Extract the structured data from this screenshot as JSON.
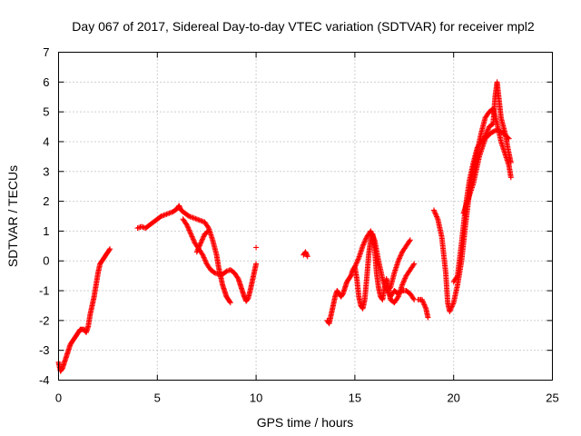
{
  "chart_data": {
    "type": "scatter",
    "title": "Day 067 of 2017, Sidereal Day-to-day VTEC variation (SDTVAR) for receiver mpl2",
    "xlabel": "GPS time / hours",
    "ylabel": "SDTVAR / TECUs",
    "xlim": [
      0,
      25
    ],
    "ylim": [
      -4,
      7
    ],
    "x_ticks": [
      0,
      5,
      10,
      15,
      20,
      25
    ],
    "y_ticks": [
      -4,
      -3,
      -2,
      -1,
      0,
      1,
      2,
      3,
      4,
      5,
      6,
      7
    ],
    "grid": true,
    "marker": "+",
    "colors": {
      "series": "#ff0000",
      "grid": "#a0a0a0",
      "axes": "#000000"
    },
    "series": [
      {
        "name": "SDTVAR",
        "segments": [
          [
            [
              0.0,
              -3.4
            ],
            [
              0.1,
              -3.7
            ],
            [
              0.2,
              -3.6
            ],
            [
              0.3,
              -3.4
            ],
            [
              0.4,
              -3.2
            ],
            [
              0.5,
              -3.0
            ],
            [
              0.6,
              -2.8
            ],
            [
              0.7,
              -2.7
            ],
            [
              0.8,
              -2.6
            ],
            [
              0.9,
              -2.5
            ],
            [
              1.0,
              -2.4
            ],
            [
              1.1,
              -2.3
            ],
            [
              1.2,
              -2.3
            ],
            [
              1.3,
              -2.3
            ],
            [
              1.4,
              -2.4
            ],
            [
              1.5,
              -2.2
            ],
            [
              1.6,
              -1.8
            ],
            [
              1.7,
              -1.5
            ],
            [
              1.8,
              -1.2
            ],
            [
              1.9,
              -0.8
            ],
            [
              2.0,
              -0.4
            ],
            [
              2.1,
              -0.1
            ],
            [
              2.2,
              0.0
            ],
            [
              2.3,
              0.1
            ],
            [
              2.4,
              0.2
            ],
            [
              2.5,
              0.3
            ],
            [
              2.6,
              0.4
            ]
          ],
          [
            [
              4.0,
              1.1
            ],
            [
              4.2,
              1.15
            ],
            [
              4.4,
              1.1
            ],
            [
              4.6,
              1.2
            ],
            [
              4.8,
              1.3
            ],
            [
              5.0,
              1.4
            ],
            [
              5.2,
              1.5
            ],
            [
              5.4,
              1.55
            ],
            [
              5.6,
              1.6
            ],
            [
              5.8,
              1.65
            ],
            [
              6.0,
              1.75
            ],
            [
              6.1,
              1.85
            ],
            [
              6.2,
              1.7
            ],
            [
              6.4,
              1.6
            ],
            [
              6.6,
              1.5
            ],
            [
              6.8,
              1.45
            ],
            [
              7.0,
              1.4
            ],
            [
              7.2,
              1.35
            ],
            [
              7.4,
              1.3
            ],
            [
              7.6,
              1.1
            ],
            [
              7.8,
              0.7
            ],
            [
              8.0,
              0.2
            ],
            [
              8.1,
              -0.2
            ],
            [
              8.2,
              -0.5
            ],
            [
              8.3,
              -0.8
            ],
            [
              8.4,
              -1.0
            ],
            [
              8.5,
              -1.2
            ],
            [
              8.6,
              -1.3
            ],
            [
              8.7,
              -1.4
            ]
          ],
          [
            [
              6.3,
              1.4
            ],
            [
              6.5,
              1.2
            ],
            [
              6.7,
              0.9
            ],
            [
              6.9,
              0.6
            ],
            [
              7.1,
              0.4
            ],
            [
              7.3,
              0.2
            ],
            [
              7.5,
              -0.1
            ],
            [
              7.7,
              -0.3
            ],
            [
              7.9,
              -0.4
            ],
            [
              8.1,
              -0.45
            ],
            [
              8.3,
              -0.45
            ],
            [
              8.5,
              -0.35
            ],
            [
              8.7,
              -0.3
            ],
            [
              8.9,
              -0.4
            ],
            [
              9.1,
              -0.6
            ],
            [
              9.2,
              -0.8
            ],
            [
              9.3,
              -1.0
            ],
            [
              9.4,
              -1.2
            ],
            [
              9.5,
              -1.35
            ],
            [
              9.6,
              -1.25
            ],
            [
              9.7,
              -1.0
            ],
            [
              9.8,
              -0.7
            ],
            [
              9.9,
              -0.4
            ],
            [
              10.0,
              -0.1
            ]
          ],
          [
            [
              7.0,
              0.3
            ],
            [
              7.2,
              0.6
            ],
            [
              7.4,
              0.9
            ],
            [
              7.6,
              1.0
            ]
          ],
          [
            [
              10.0,
              0.45
            ]
          ],
          [
            [
              12.4,
              0.2
            ],
            [
              12.5,
              0.3
            ],
            [
              12.6,
              0.15
            ]
          ],
          [
            [
              13.6,
              -2.0
            ],
            [
              13.7,
              -2.1
            ],
            [
              13.8,
              -1.8
            ],
            [
              13.9,
              -1.5
            ],
            [
              14.0,
              -1.2
            ],
            [
              14.1,
              -1.0
            ],
            [
              14.2,
              -1.1
            ],
            [
              14.3,
              -1.2
            ],
            [
              14.4,
              -1.1
            ],
            [
              14.5,
              -0.9
            ],
            [
              14.6,
              -0.7
            ],
            [
              14.7,
              -0.6
            ],
            [
              14.8,
              -0.5
            ],
            [
              14.9,
              -0.3
            ],
            [
              15.0,
              -0.2
            ],
            [
              15.1,
              -0.6
            ],
            [
              15.2,
              -1.2
            ],
            [
              15.3,
              -1.5
            ],
            [
              15.4,
              -1.6
            ],
            [
              15.5,
              -1.3
            ],
            [
              15.6,
              -0.6
            ],
            [
              15.7,
              0.2
            ],
            [
              15.8,
              0.7
            ],
            [
              15.9,
              0.9
            ],
            [
              16.0,
              0.4
            ],
            [
              16.1,
              -0.4
            ],
            [
              16.2,
              -0.9
            ],
            [
              16.3,
              -1.2
            ],
            [
              16.4,
              -1.3
            ],
            [
              16.5,
              -0.9
            ],
            [
              16.6,
              -0.6
            ],
            [
              16.7,
              -0.9
            ],
            [
              16.8,
              -1.3
            ],
            [
              17.0,
              -1.4
            ],
            [
              17.2,
              -1.2
            ],
            [
              17.4,
              -0.8
            ],
            [
              17.6,
              -0.5
            ],
            [
              17.8,
              -0.3
            ],
            [
              18.0,
              -0.1
            ]
          ],
          [
            [
              15.0,
              -0.2
            ],
            [
              15.2,
              0.1
            ],
            [
              15.4,
              0.5
            ],
            [
              15.6,
              0.8
            ],
            [
              15.8,
              1.0
            ],
            [
              16.0,
              0.7
            ],
            [
              16.2,
              0.0
            ],
            [
              16.4,
              -0.6
            ],
            [
              16.6,
              -1.0
            ],
            [
              16.8,
              -0.9
            ],
            [
              17.0,
              -0.4
            ],
            [
              17.2,
              0.0
            ],
            [
              17.4,
              0.3
            ],
            [
              17.6,
              0.5
            ],
            [
              17.8,
              0.7
            ]
          ],
          [
            [
              16.6,
              -0.9
            ],
            [
              16.8,
              -1.2
            ],
            [
              17.0,
              -1.0
            ],
            [
              17.2,
              -1.1
            ],
            [
              17.4,
              -1.0
            ],
            [
              17.6,
              -1.0
            ],
            [
              17.8,
              -1.1
            ],
            [
              18.0,
              -1.3
            ]
          ],
          [
            [
              18.2,
              -1.3
            ],
            [
              18.4,
              -1.3
            ],
            [
              18.6,
              -1.6
            ],
            [
              18.7,
              -1.9
            ]
          ],
          [
            [
              19.0,
              1.7
            ],
            [
              19.2,
              1.4
            ],
            [
              19.4,
              0.8
            ],
            [
              19.6,
              -0.4
            ],
            [
              19.7,
              -1.4
            ],
            [
              19.8,
              -1.7
            ],
            [
              20.0,
              -1.4
            ],
            [
              20.2,
              -0.8
            ],
            [
              20.4,
              0.0
            ],
            [
              20.6,
              1.2
            ],
            [
              20.8,
              2.3
            ],
            [
              21.0,
              3.1
            ],
            [
              21.2,
              3.7
            ],
            [
              21.4,
              4.3
            ],
            [
              21.6,
              4.8
            ],
            [
              21.8,
              5.0
            ],
            [
              22.0,
              5.1
            ],
            [
              22.2,
              4.6
            ],
            [
              22.4,
              4.0
            ],
            [
              22.6,
              3.6
            ],
            [
              22.8,
              3.2
            ],
            [
              22.9,
              2.8
            ]
          ],
          [
            [
              20.0,
              -0.7
            ],
            [
              20.2,
              -0.5
            ],
            [
              20.4,
              0.6
            ],
            [
              20.6,
              1.8
            ],
            [
              20.8,
              2.7
            ],
            [
              21.0,
              3.3
            ],
            [
              21.2,
              3.8
            ],
            [
              21.4,
              4.0
            ],
            [
              21.6,
              4.2
            ],
            [
              21.8,
              4.5
            ],
            [
              22.0,
              4.6
            ],
            [
              22.1,
              5.5
            ],
            [
              22.2,
              6.0
            ],
            [
              22.3,
              5.4
            ],
            [
              22.4,
              4.8
            ],
            [
              22.6,
              4.3
            ],
            [
              22.8,
              3.6
            ],
            [
              22.9,
              3.3
            ]
          ],
          [
            [
              20.5,
              1.6
            ],
            [
              20.7,
              2.0
            ],
            [
              21.0,
              2.6
            ],
            [
              21.3,
              3.5
            ],
            [
              21.6,
              4.1
            ],
            [
              21.9,
              4.3
            ],
            [
              22.2,
              4.4
            ],
            [
              22.5,
              4.3
            ],
            [
              22.8,
              4.1
            ]
          ]
        ]
      }
    ]
  }
}
